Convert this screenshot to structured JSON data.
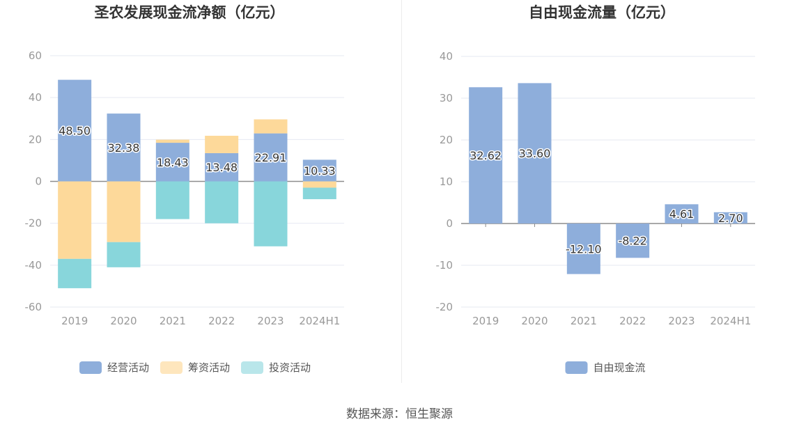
{
  "source_label": "数据来源：恒生聚源",
  "colors": {
    "operating": "#8eaedb",
    "financing": "#fdd99a",
    "investing": "#88d6db",
    "fcf": "#8eaedb"
  },
  "chart_data": [
    {
      "type": "bar",
      "stacked": true,
      "title": "圣农发展现金流净额（亿元）",
      "categories": [
        "2019",
        "2020",
        "2021",
        "2022",
        "2023",
        "2024H1"
      ],
      "ylim": [
        -60,
        60
      ],
      "yticks": [
        60,
        40,
        20,
        0,
        -20,
        -40,
        -60
      ],
      "grid": true,
      "legend_position": "bottom",
      "series": [
        {
          "name": "经营活动",
          "values": [
            48.5,
            32.38,
            18.43,
            13.48,
            22.91,
            10.33
          ],
          "labels": [
            "48.50",
            "32.38",
            "18.43",
            "13.48",
            "22.91",
            "10.33"
          ]
        },
        {
          "name": "筹资活动",
          "values": [
            -37.0,
            -29.0,
            1.5,
            8.3,
            6.7,
            -3.0
          ]
        },
        {
          "name": "投资活动",
          "values": [
            -14.0,
            -12.0,
            -18.0,
            -20.0,
            -31.0,
            -5.5
          ]
        }
      ]
    },
    {
      "type": "bar",
      "title": "自由现金流量（亿元）",
      "categories": [
        "2019",
        "2020",
        "2021",
        "2022",
        "2023",
        "2024H1"
      ],
      "ylim": [
        -20,
        40
      ],
      "yticks": [
        40,
        30,
        20,
        10,
        0,
        -10,
        -20
      ],
      "grid": true,
      "legend_position": "bottom",
      "series": [
        {
          "name": "自由现金流",
          "values": [
            32.62,
            33.6,
            -12.1,
            -8.22,
            4.61,
            2.7
          ],
          "labels": [
            "32.62",
            "33.60",
            "-12.10",
            "-8.22",
            "4.61",
            "2.70"
          ]
        }
      ]
    }
  ]
}
